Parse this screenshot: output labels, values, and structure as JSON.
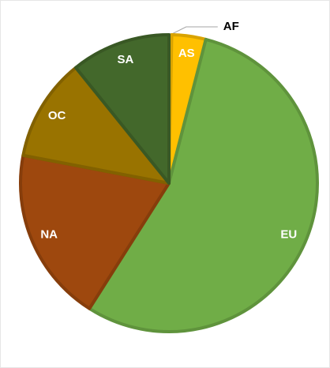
{
  "chart_data": {
    "type": "pie",
    "categories": [
      "AF",
      "AS",
      "EU",
      "NA",
      "OC",
      "SA"
    ],
    "values": [
      0.3,
      3.7,
      55,
      19,
      11.2,
      10.8
    ],
    "colors": [
      "#d9d9d9",
      "#ffc000",
      "#70ad47",
      "#9e480e",
      "#997300",
      "#43682b"
    ]
  }
}
